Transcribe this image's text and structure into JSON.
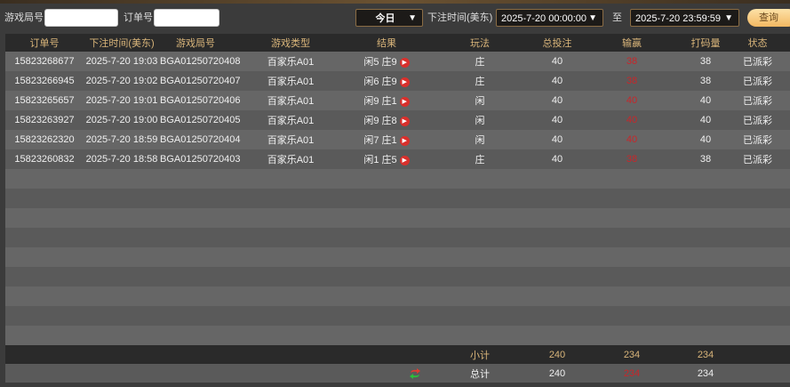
{
  "filters": {
    "round_label": "游戏局号",
    "round_value": "",
    "order_label": "订单号",
    "order_value": "",
    "date_range": "今日",
    "time_label": "下注时间(美东)",
    "start": "2025-7-20 00:00:00",
    "to": "至",
    "end": "2025-7-20 23:59:59",
    "query": "查询"
  },
  "columns": [
    "订单号",
    "下注时间(美东)",
    "游戏局号",
    "游戏类型",
    "结果",
    "玩法",
    "总投注",
    "输赢",
    "打码量",
    "状态"
  ],
  "rows": [
    [
      "15823268677",
      "2025-7-20 19:03",
      "BGA01250720408",
      "百家乐A01",
      "闲5 庄9",
      "庄",
      "40",
      "38",
      "38",
      "已派彩"
    ],
    [
      "15823266945",
      "2025-7-20 19:02",
      "BGA01250720407",
      "百家乐A01",
      "闲6 庄9",
      "庄",
      "40",
      "38",
      "38",
      "已派彩"
    ],
    [
      "15823265657",
      "2025-7-20 19:01",
      "BGA01250720406",
      "百家乐A01",
      "闲9 庄1",
      "闲",
      "40",
      "40",
      "40",
      "已派彩"
    ],
    [
      "15823263927",
      "2025-7-20 19:00",
      "BGA01250720405",
      "百家乐A01",
      "闲9 庄8",
      "闲",
      "40",
      "40",
      "40",
      "已派彩"
    ],
    [
      "15823262320",
      "2025-7-20 18:59",
      "BGA01250720404",
      "百家乐A01",
      "闲7 庄1",
      "闲",
      "40",
      "40",
      "40",
      "已派彩"
    ],
    [
      "15823260832",
      "2025-7-20 18:58",
      "BGA01250720403",
      "百家乐A01",
      "闲1 庄5",
      "庄",
      "40",
      "38",
      "38",
      "已派彩"
    ]
  ],
  "subtotal": {
    "label": "小计",
    "bet": "240",
    "winloss": "234",
    "turnover": "234"
  },
  "total": {
    "label": "总计",
    "bet": "240",
    "winloss": "234",
    "turnover": "234",
    "icon": "refresh-icon"
  },
  "colors": {
    "accent": "#d9b57a",
    "loss": "#c8262a"
  }
}
